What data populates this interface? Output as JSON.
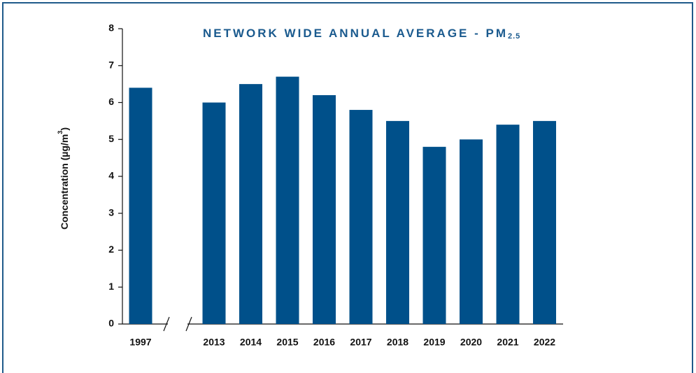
{
  "chart_data": {
    "type": "bar",
    "title": "NETWORK WIDE ANNUAL AVERAGE - PM",
    "title_subscript": "2.5",
    "y_label": "Concentration (µg/m",
    "y_label_superscript": "3",
    "y_label_end": ")",
    "categories": [
      "1997",
      "2013",
      "2014",
      "2015",
      "2016",
      "2017",
      "2018",
      "2019",
      "2020",
      "2021",
      "2022"
    ],
    "values": [
      6.4,
      6.0,
      6.5,
      6.7,
      6.2,
      5.8,
      5.5,
      4.8,
      5.0,
      5.4,
      5.5
    ],
    "color": "#00508a",
    "ylim": [
      0,
      8
    ],
    "yticks": [
      0,
      1,
      2,
      3,
      4,
      5,
      6,
      7,
      8
    ],
    "grid": false,
    "axis_break": true
  }
}
